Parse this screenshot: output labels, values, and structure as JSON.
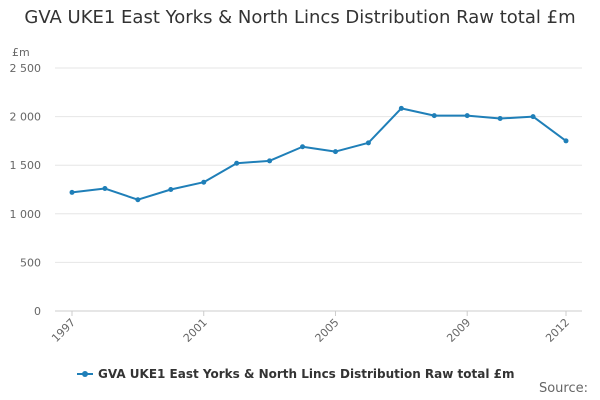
{
  "chart_data": {
    "type": "line",
    "title": "GVA UKE1 East Yorks & North Lincs Distribution Raw total £m",
    "ylabel": "£m",
    "xlabel": "",
    "x": [
      1997,
      1998,
      1999,
      2000,
      2001,
      2002,
      2003,
      2004,
      2005,
      2006,
      2007,
      2008,
      2009,
      2010,
      2011,
      2012
    ],
    "series": [
      {
        "name": "GVA UKE1 East Yorks & North Lincs Distribution Raw total £m",
        "values": [
          1220,
          1260,
          1145,
          1250,
          1325,
          1520,
          1545,
          1690,
          1640,
          1730,
          2085,
          2010,
          2010,
          1980,
          2000,
          1750
        ]
      }
    ],
    "ylim": [
      0,
      2500
    ],
    "y_ticks": [
      0,
      500,
      1000,
      1500,
      2000,
      2500
    ],
    "y_tick_labels": [
      "0",
      "500",
      "1 000",
      "1 500",
      "2 000",
      "2 500"
    ],
    "x_tick_labels": [
      "1997",
      "2001",
      "2005",
      "2009",
      "2012"
    ],
    "x_tick_values": [
      1997,
      2001,
      2005,
      2009,
      2012
    ],
    "grid": true,
    "legend_placement": "bottom",
    "line_color": "#1f7fb8"
  },
  "footer": {
    "source_label": "Source:"
  }
}
